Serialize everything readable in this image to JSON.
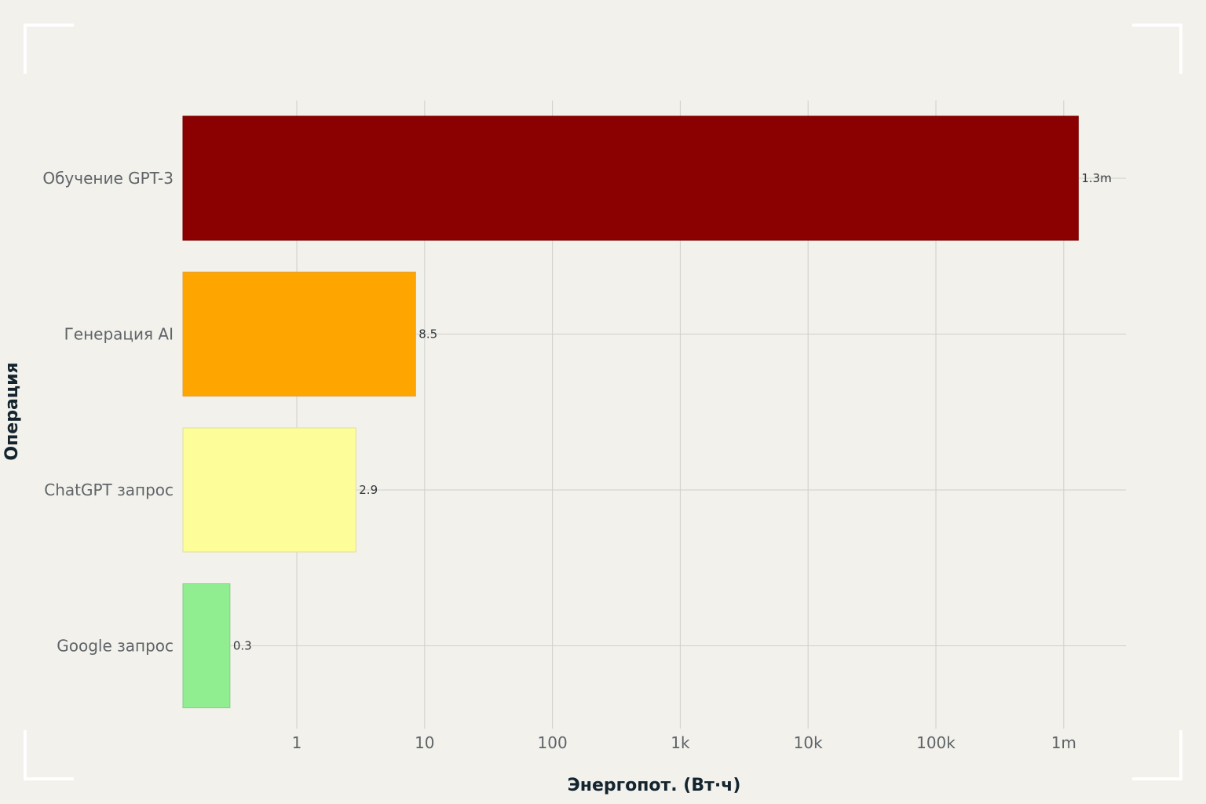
{
  "chart_data": {
    "type": "bar",
    "orientation": "horizontal",
    "xscale": "log",
    "xlabel": "Энергопот. (Вт·ч)",
    "ylabel": "Операция",
    "xlim": [
      0.11,
      3000000
    ],
    "grid": true,
    "x_ticks": [
      {
        "value": 1,
        "label": "1"
      },
      {
        "value": 10,
        "label": "10"
      },
      {
        "value": 100,
        "label": "100"
      },
      {
        "value": 1000,
        "label": "1k"
      },
      {
        "value": 10000,
        "label": "10k"
      },
      {
        "value": 100000,
        "label": "100k"
      },
      {
        "value": 1000000,
        "label": "1m"
      }
    ],
    "categories": [
      "Обучение GPT-3",
      "Генерация AI",
      "ChatGPT запрос",
      "Google запрос"
    ],
    "values": [
      1300000,
      8.5,
      2.9,
      0.3
    ],
    "data_labels": [
      "1.3m",
      "8.5",
      "2.9",
      "0.3"
    ],
    "colors": [
      "#8b0000",
      "#ffa500",
      "#fdfd99",
      "#90ee90"
    ],
    "border_colors": [
      "#7a0000",
      "#e0a040",
      "#e0e09a",
      "#88cc88"
    ]
  }
}
